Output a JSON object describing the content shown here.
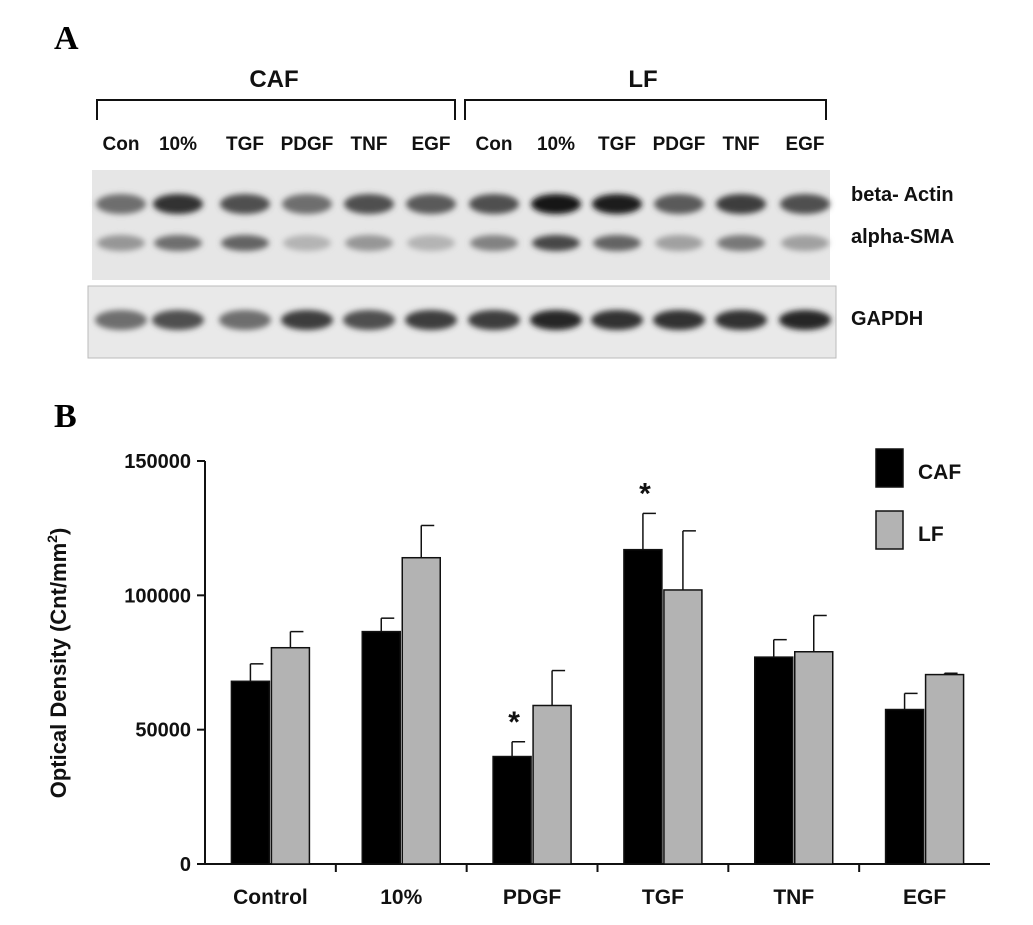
{
  "panel_a": {
    "letter": "A",
    "groups": [
      {
        "label": "CAF"
      },
      {
        "label": "LF"
      }
    ],
    "lanes": [
      "Con",
      "10%",
      "TGF",
      "PDGF",
      "TNF",
      "EGF",
      "Con",
      "10%",
      "TGF",
      "PDGF",
      "TNF",
      "EGF"
    ],
    "bands": {
      "beta_actin": "beta- Actin",
      "alpha_sma": "alpha-SMA",
      "gapdh": "GAPDH"
    },
    "band_intensity": {
      "beta_actin": [
        0.55,
        0.85,
        0.7,
        0.55,
        0.7,
        0.65,
        0.7,
        1.0,
        0.95,
        0.65,
        0.8,
        0.7
      ],
      "alpha_sma": [
        0.35,
        0.55,
        0.6,
        0.2,
        0.35,
        0.2,
        0.45,
        0.75,
        0.6,
        0.3,
        0.5,
        0.3
      ],
      "gapdh": [
        0.55,
        0.7,
        0.55,
        0.8,
        0.7,
        0.8,
        0.8,
        0.9,
        0.85,
        0.85,
        0.85,
        0.9
      ]
    }
  },
  "panel_b": {
    "letter": "B"
  },
  "chart_data": {
    "type": "bar",
    "categories": [
      "Control",
      "10%",
      "PDGF",
      "TGF",
      "TNF",
      "EGF"
    ],
    "series": [
      {
        "name": "CAF",
        "color": "#000000",
        "values": [
          68000,
          86500,
          40000,
          117000,
          77000,
          57500
        ],
        "errors": [
          6500,
          5000,
          5500,
          13500,
          6500,
          6000
        ]
      },
      {
        "name": "LF",
        "color": "#b3b3b3",
        "values": [
          80500,
          114000,
          59000,
          102000,
          79000,
          70500
        ],
        "errors": [
          6000,
          12000,
          13000,
          22000,
          13500,
          500
        ]
      }
    ],
    "ylabel": "Optical Density (Cnt/mm",
    "ylabel_sup": "2",
    "ylabel_close": ")",
    "ylim": [
      0,
      150000
    ],
    "yticks": [
      "0",
      "50000",
      "100000",
      "150000"
    ],
    "ytick_values": [
      0,
      50000,
      100000,
      150000
    ],
    "significance": [
      {
        "category": "PDGF",
        "series": "CAF",
        "mark": "*"
      },
      {
        "category": "TGF",
        "series": "CAF",
        "mark": "*"
      }
    ],
    "legend_position": "top-right",
    "grid": false
  }
}
